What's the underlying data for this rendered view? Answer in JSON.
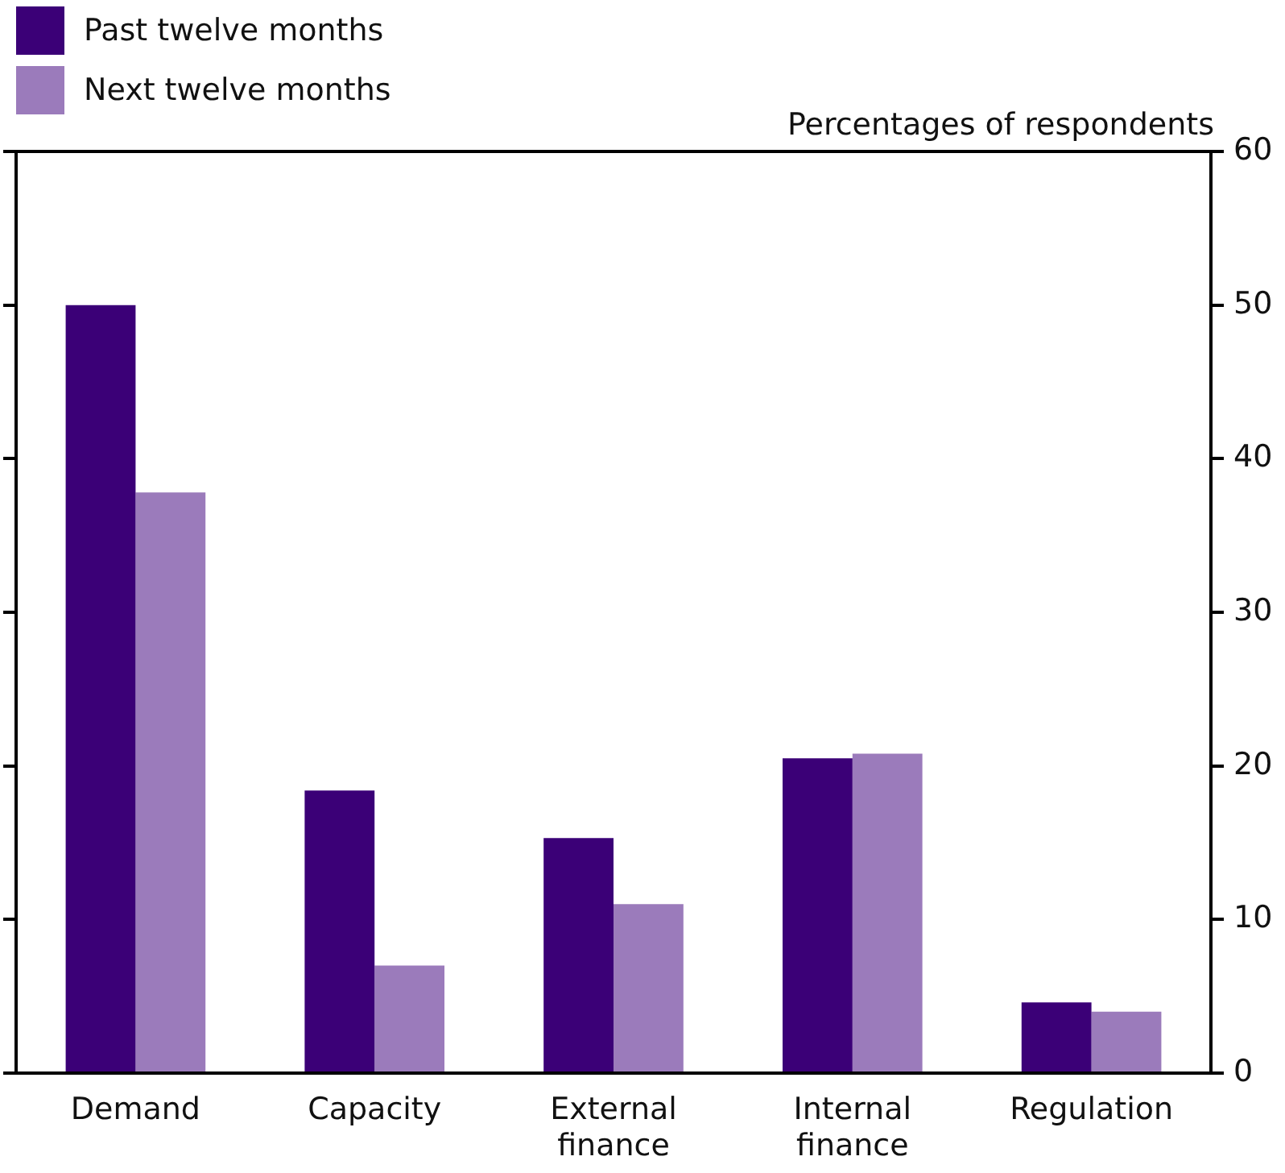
{
  "chart_data": {
    "type": "bar",
    "ylabel": "Percentages of respondents",
    "categories": [
      "Demand",
      "Capacity",
      "External finance",
      "Internal finance",
      "Regulation"
    ],
    "series": [
      {
        "name": "Past twelve months",
        "color": "#3b0077",
        "values": [
          50,
          18.4,
          15.3,
          20.5,
          4.6
        ]
      },
      {
        "name": "Next twelve months",
        "color": "#9b7bbb",
        "values": [
          37.8,
          7,
          11,
          20.8,
          4
        ]
      }
    ],
    "ylim": [
      0,
      60
    ],
    "yticks": [
      0,
      10,
      20,
      30,
      40,
      50,
      60
    ],
    "grid": false,
    "legend": "top left"
  }
}
